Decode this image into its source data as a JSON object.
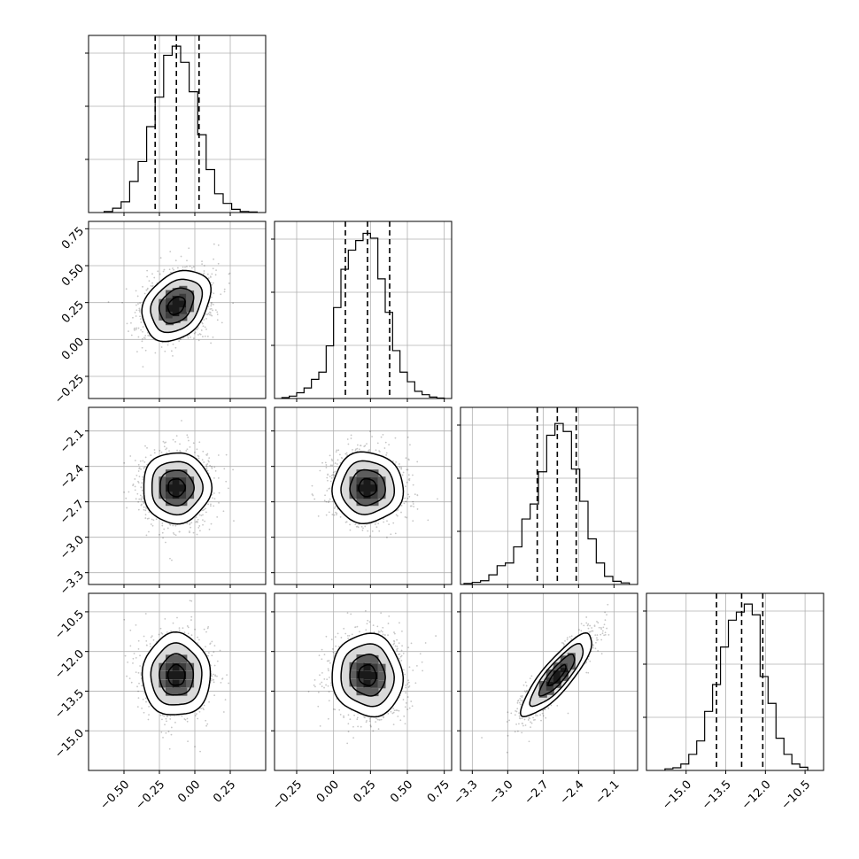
{
  "chart_data": {
    "type": "corner",
    "parameters": [
      {
        "xlim": [
          -0.75,
          0.5
        ],
        "ticks": [
          -0.5,
          -0.25,
          0.0,
          0.25
        ],
        "tick_labels": [
          "−0.50",
          "−0.25",
          "0.00",
          "0.25"
        ],
        "quantiles": [
          -0.28,
          -0.13,
          0.03
        ],
        "hist_bins": [
          -0.64,
          -0.58,
          -0.52,
          -0.46,
          -0.4,
          -0.34,
          -0.28,
          -0.22,
          -0.16,
          -0.1,
          -0.04,
          0.02,
          0.08,
          0.14,
          0.2,
          0.26,
          0.32,
          0.38,
          0.44
        ],
        "hist_counts": [
          2,
          8,
          20,
          58,
          95,
          160,
          215,
          293,
          310,
          280,
          225,
          145,
          80,
          35,
          17,
          6,
          2,
          1
        ]
      },
      {
        "xlim": [
          -0.4,
          0.8
        ],
        "ticks": [
          -0.25,
          0.0,
          0.25,
          0.5,
          0.75
        ],
        "tick_labels": [
          "−0.25",
          "0.00",
          "0.25",
          "0.50",
          "0.75"
        ],
        "quantiles": [
          0.08,
          0.23,
          0.38
        ],
        "hist_bins": [
          -0.35,
          -0.3,
          -0.25,
          -0.2,
          -0.15,
          -0.1,
          -0.05,
          0.0,
          0.05,
          0.1,
          0.15,
          0.2,
          0.25,
          0.3,
          0.35,
          0.4,
          0.45,
          0.5,
          0.55,
          0.6,
          0.65,
          0.7,
          0.75
        ],
        "hist_counts": [
          2,
          5,
          12,
          22,
          40,
          55,
          110,
          190,
          270,
          310,
          330,
          345,
          335,
          250,
          180,
          100,
          55,
          35,
          15,
          8,
          3,
          1
        ]
      },
      {
        "xlim": [
          -3.4,
          -1.9
        ],
        "ticks": [
          -3.3,
          -3.0,
          -2.7,
          -2.4,
          -2.1
        ],
        "tick_labels": [
          "−3.3",
          "−3.0",
          "−2.7",
          "−2.4",
          "−2.1"
        ],
        "quantiles": [
          -2.75,
          -2.58,
          -2.42
        ],
        "hist_bins": [
          -3.37,
          -3.3,
          -3.23,
          -3.16,
          -3.09,
          -3.02,
          -2.95,
          -2.88,
          -2.81,
          -2.74,
          -2.67,
          -2.6,
          -2.53,
          -2.46,
          -2.39,
          -2.32,
          -2.25,
          -2.18,
          -2.11,
          -2.04,
          -1.97
        ],
        "hist_counts": [
          2,
          4,
          7,
          18,
          35,
          40,
          70,
          122,
          150,
          210,
          278,
          300,
          285,
          215,
          155,
          85,
          40,
          15,
          6,
          3
        ]
      },
      {
        "xlim": [
          -16.5,
          -9.8
        ],
        "ticks": [
          -15.0,
          -13.5,
          -12.0,
          -10.5
        ],
        "tick_labels": [
          "−15.0",
          "−13.5",
          "−12.0",
          "−10.5"
        ],
        "quantiles": [
          -13.85,
          -12.9,
          -12.1
        ],
        "hist_bins": [
          -15.8,
          -15.5,
          -15.2,
          -14.9,
          -14.6,
          -14.3,
          -14.0,
          -13.7,
          -13.4,
          -13.1,
          -12.8,
          -12.5,
          -12.2,
          -11.9,
          -11.6,
          -11.3,
          -11.0,
          -10.7,
          -10.4
        ],
        "hist_counts": [
          3,
          5,
          12,
          30,
          55,
          110,
          160,
          230,
          280,
          295,
          310,
          290,
          175,
          125,
          60,
          30,
          12,
          6
        ]
      }
    ],
    "diag_ymax": [
      330,
      370,
      330,
      330
    ],
    "density_levels": [
      0.118,
      0.393,
      0.675,
      0.865
    ],
    "pairs": [
      {
        "row": 1,
        "col": 0,
        "mean": [
          -0.13,
          0.23
        ],
        "std": [
          0.12,
          0.12
        ],
        "corr": 0.3
      },
      {
        "row": 2,
        "col": 0,
        "mean": [
          -0.13,
          -2.58
        ],
        "std": [
          0.12,
          0.15
        ],
        "corr": 0.0
      },
      {
        "row": 2,
        "col": 1,
        "mean": [
          0.23,
          -2.58
        ],
        "std": [
          0.12,
          0.15
        ],
        "corr": 0.0
      },
      {
        "row": 3,
        "col": 0,
        "mean": [
          -0.13,
          -12.9
        ],
        "std": [
          0.12,
          0.78
        ],
        "corr": 0.0
      },
      {
        "row": 3,
        "col": 1,
        "mean": [
          0.23,
          -12.9
        ],
        "std": [
          0.12,
          0.78
        ],
        "corr": -0.05
      },
      {
        "row": 3,
        "col": 2,
        "mean": [
          -2.58,
          -12.9
        ],
        "std": [
          0.15,
          0.78
        ],
        "corr": 0.85
      }
    ],
    "grid": true
  }
}
